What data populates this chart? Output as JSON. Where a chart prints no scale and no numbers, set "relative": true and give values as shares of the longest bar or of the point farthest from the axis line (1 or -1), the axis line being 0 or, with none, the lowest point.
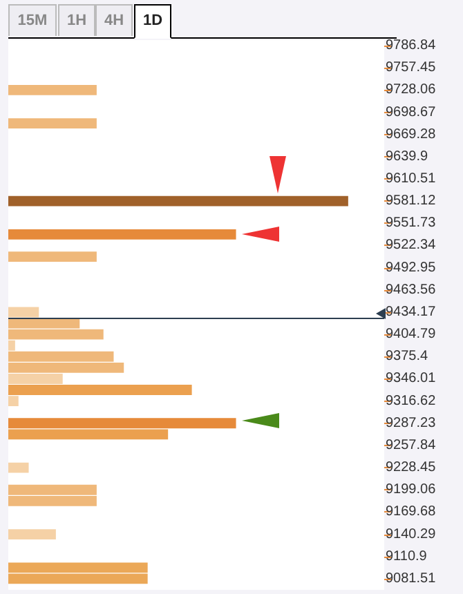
{
  "chart_data": {
    "type": "bar",
    "orientation": "horizontal",
    "relative": true,
    "annotations": [
      "15M",
      "1H",
      "4H",
      "1D"
    ],
    "x": [
      9728.06,
      9683.98,
      9581.12,
      9537.04,
      9507.64,
      9434.17,
      9419.48,
      9404.79,
      9390.1,
      9375.4,
      9360.71,
      9346.01,
      9331.32,
      9316.62,
      9287.23,
      9272.54,
      9228.45,
      9199.06,
      9184.37,
      9140.29,
      9096.21,
      9081.51
    ],
    "values": [
      0.26,
      0.26,
      1,
      0.67,
      0.26,
      0.09,
      0.21,
      0.28,
      0.02,
      0.31,
      0.34,
      0.16,
      0.54,
      0.03,
      0.67,
      0.47,
      0.06,
      0.26,
      0.26,
      0.14,
      0.41,
      0.41
    ],
    "colors": [
      "#efb87a",
      "#efb87a",
      "#a0612a",
      "#e68a3a",
      "#efb87a",
      "#f5d1a6",
      "#efb87a",
      "#efb87a",
      "#f5d1a6",
      "#efb87a",
      "#efb87a",
      "#f5d1a6",
      "#eba04f",
      "#f5d1a6",
      "#e68a3a",
      "#eba04f",
      "#f5d1a6",
      "#efb87a",
      "#efb87a",
      "#f5d1a6",
      "#eba858",
      "#eba858"
    ],
    "ylim": [
      9066.8,
      9794.2
    ],
    "yticks": [
      9786.84,
      9757.45,
      9728.06,
      9698.67,
      9669.28,
      9639.9,
      9610.51,
      9581.12,
      9551.73,
      9522.34,
      9492.95,
      9463.56,
      9434.17,
      9404.79,
      9375.4,
      9346.01,
      9316.62,
      9287.23,
      9257.84,
      9228.45,
      9199.06,
      9169.68,
      9140.29,
      9110.9,
      9081.51
    ],
    "ref_lines": [
      {
        "axis": "y",
        "value": 9426,
        "color": "#2c3e50"
      }
    ],
    "grid": false
  }
}
